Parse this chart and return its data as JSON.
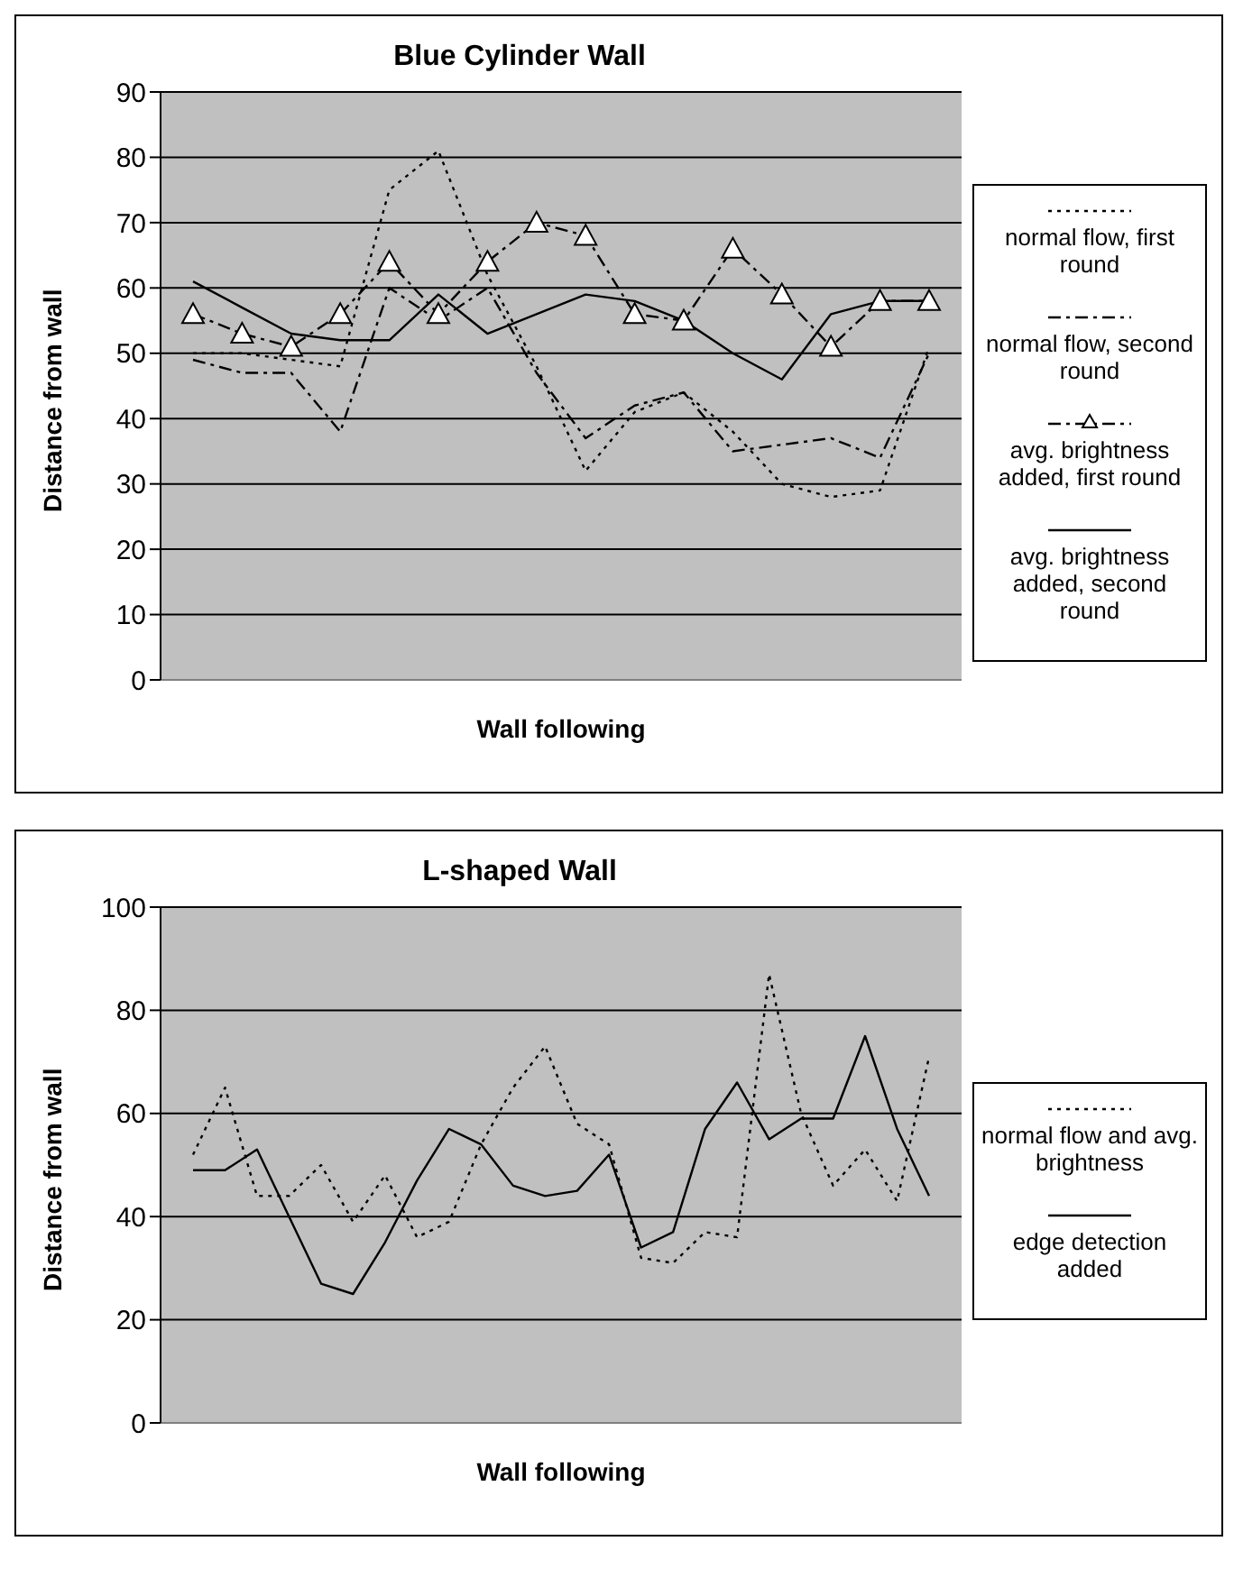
{
  "chart_data": [
    {
      "type": "line",
      "title": "Blue Cylinder Wall",
      "xlabel": "Wall following",
      "ylabel": "Distance from wall",
      "categories": [
        null,
        null,
        null,
        null,
        null,
        null,
        null,
        null,
        null,
        null,
        null,
        null,
        null,
        null,
        null,
        null
      ],
      "series": [
        {
          "name": "normal flow, first round",
          "color": "#000000",
          "line_style": "dotted",
          "marker": "none",
          "values": [
            50,
            50,
            49,
            48,
            75,
            81,
            62,
            48,
            32,
            41,
            44,
            38,
            30,
            28,
            29,
            51
          ]
        },
        {
          "name": "normal flow, second round",
          "color": "#000000",
          "line_style": "dashed",
          "marker": "none",
          "values": [
            49,
            47,
            47,
            38,
            60,
            55,
            60,
            47,
            37,
            42,
            44,
            35,
            36,
            37,
            34,
            50
          ]
        },
        {
          "name": "avg. brightness added, first round",
          "color": "#000000",
          "line_style": "dashed",
          "marker": "triangle",
          "values": [
            56,
            53,
            51,
            56,
            64,
            56,
            64,
            70,
            68,
            56,
            55,
            66,
            59,
            51,
            58,
            58
          ]
        },
        {
          "name": "avg. brightness added, second round",
          "color": "#000000",
          "line_style": "solid",
          "marker": "none",
          "values": [
            61,
            57,
            53,
            52,
            52,
            59,
            53,
            56,
            59,
            58,
            55,
            50,
            46,
            56,
            58,
            58
          ]
        }
      ],
      "ylim": [
        0,
        90
      ],
      "yticks": [
        0,
        10,
        20,
        30,
        40,
        50,
        60,
        70,
        80,
        90
      ],
      "grid": "y",
      "legend": "right",
      "tick_labels": "y"
    },
    {
      "type": "line",
      "title": "L-shaped Wall",
      "xlabel": "Wall following",
      "ylabel": "Distance from wall",
      "categories": [
        null,
        null,
        null,
        null,
        null,
        null,
        null,
        null,
        null,
        null,
        null,
        null,
        null,
        null,
        null,
        null,
        null,
        null,
        null,
        null,
        null,
        null,
        null,
        null
      ],
      "series": [
        {
          "name": "normal flow and avg. brightness",
          "color": "#000000",
          "line_style": "dotted",
          "marker": "none",
          "values": [
            52,
            65,
            44,
            44,
            50,
            39,
            48,
            36,
            39,
            54,
            65,
            73,
            58,
            54,
            32,
            31,
            37,
            36,
            87,
            60,
            46,
            53,
            43,
            71
          ]
        },
        {
          "name": "edge detection added",
          "color": "#000000",
          "line_style": "solid",
          "marker": "none",
          "values": [
            49,
            49,
            53,
            40,
            27,
            25,
            35,
            47,
            57,
            54,
            46,
            44,
            45,
            52,
            34,
            37,
            57,
            66,
            55,
            59,
            59,
            75,
            57,
            44
          ]
        }
      ],
      "ylim": [
        0,
        100
      ],
      "yticks": [
        0,
        20,
        40,
        60,
        80,
        100
      ],
      "grid": "y",
      "legend": "right",
      "tick_labels": "y"
    }
  ]
}
